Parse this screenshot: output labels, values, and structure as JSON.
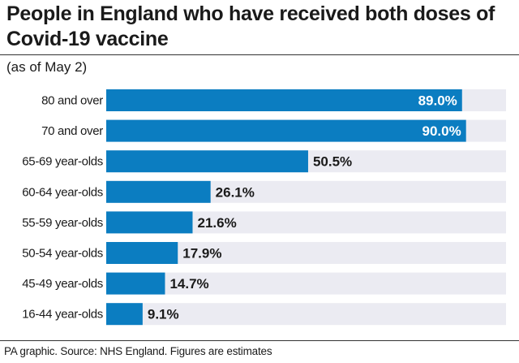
{
  "title": "People in England who have received both doses of Covid-19 vaccine",
  "subtitle": "(as of May 2)",
  "footer": "PA graphic. Source: NHS England. Figures are estimates",
  "colors": {
    "bar": "#0b7dc1",
    "track": "#ebebf2",
    "text": "#1a1a1a",
    "inside_label": "#ffffff"
  },
  "chart_data": {
    "type": "bar",
    "orientation": "horizontal",
    "title": "People in England who have received both doses of Covid-19 vaccine",
    "subtitle": "(as of May 2)",
    "categories": [
      "80 and over",
      "70 and over",
      "65-69 year-olds",
      "60-64 year-olds",
      "55-59 year-olds",
      "50-54 year-olds",
      "45-49 year-olds",
      "16-44 year-olds"
    ],
    "values": [
      89.0,
      90.0,
      50.5,
      26.1,
      21.6,
      17.9,
      14.7,
      9.1
    ],
    "value_labels": [
      "89.0%",
      "90.0%",
      "50.5%",
      "26.1%",
      "21.6%",
      "17.9%",
      "14.7%",
      "9.1%"
    ],
    "xlim": [
      0,
      100
    ],
    "unit": "%",
    "grid": false,
    "legend": "none"
  }
}
